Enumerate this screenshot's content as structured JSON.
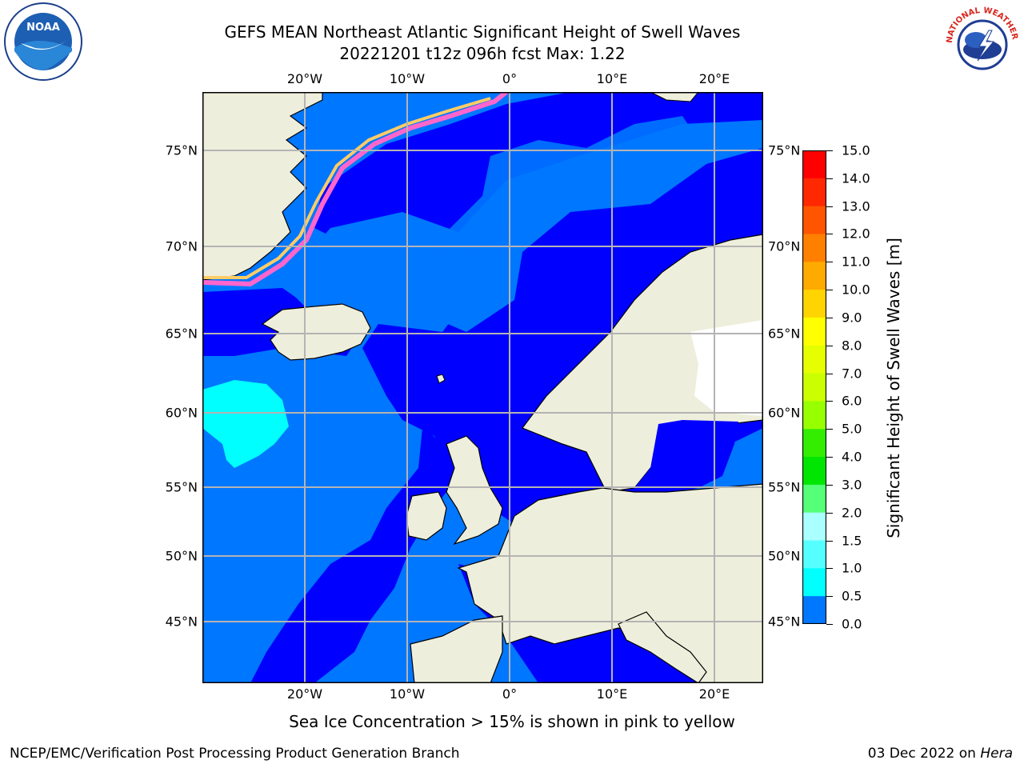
{
  "title": {
    "line1": "GEFS MEAN Northeast Atlantic Significant Height of Swell Waves",
    "line2": "20221201 t12z 096h fcst    Max: 1.22"
  },
  "map": {
    "lon_labels": [
      "20°W",
      "10°W",
      "0°",
      "10°E",
      "20°E"
    ],
    "lat_labels": [
      "75°N",
      "70°N",
      "65°N",
      "60°N",
      "55°N",
      "50°N",
      "45°N"
    ],
    "colors": {
      "land": "#eeeedc",
      "ocean_low": "#0000ff",
      "ocean_mid": "#0077ff",
      "swell_high": "#00ffff",
      "grid": "#b4b4b4"
    }
  },
  "colorbar": {
    "label": "Significant Height of Swell Waves [m]",
    "ticks": [
      "15.0",
      "14.0",
      "13.0",
      "12.0",
      "11.0",
      "10.0",
      "9.0",
      "8.0",
      "7.0",
      "6.0",
      "5.0",
      "4.0",
      "3.0",
      "2.0",
      "1.5",
      "1.0",
      "0.5",
      "0.0"
    ],
    "colors": [
      "#ff0000",
      "#ff2800",
      "#ff5500",
      "#ff7f00",
      "#ffaa00",
      "#ffd400",
      "#ffff00",
      "#e5ff00",
      "#cbff00",
      "#97ff00",
      "#33ee00",
      "#00e600",
      "#55ff77",
      "#aaffff",
      "#55ffff",
      "#00ffff",
      "#0077ff",
      "#0000ff"
    ]
  },
  "logos": {
    "left": "NOAA",
    "right": "NATIONAL WEATHER SERVICE"
  },
  "note": "Sea Ice Concentration > 15% is shown in pink to yellow",
  "footer": {
    "left": "NCEP/EMC/Verification Post Processing Product Generation Branch",
    "right_prefix": "03 Dec 2022 on ",
    "right_host": "Hera"
  }
}
